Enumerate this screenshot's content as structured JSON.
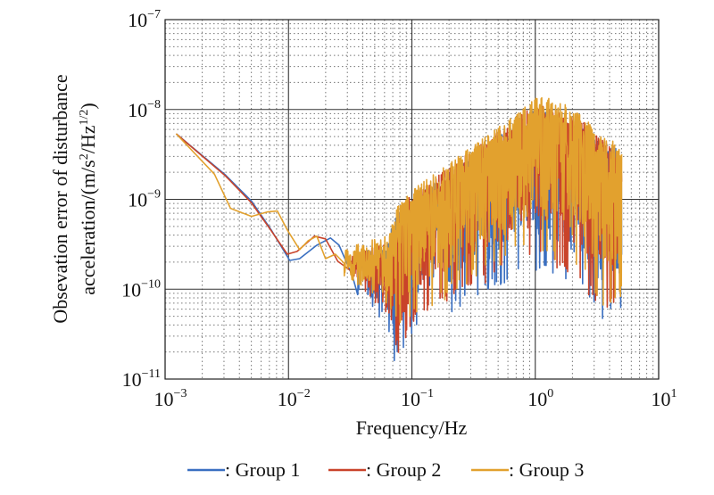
{
  "chart_data": {
    "type": "line",
    "xscale": "log",
    "yscale": "log",
    "xlim": [
      0.001,
      10
    ],
    "ylim": [
      1e-11,
      1e-07
    ],
    "xlabel": "Frequency/Hz",
    "ylabel": {
      "line1": "Obsevation error of disturbance",
      "line2_parts": [
        "acceleration/(m/s",
        "2",
        "/Hz",
        "1/2",
        ")"
      ]
    },
    "x_ticks": [
      {
        "base": "10",
        "exp": "−3",
        "log": -3
      },
      {
        "base": "10",
        "exp": "−2",
        "log": -2
      },
      {
        "base": "10",
        "exp": "−1",
        "log": -1
      },
      {
        "base": "10",
        "exp": "0",
        "log": 0
      },
      {
        "base": "10",
        "exp": "1",
        "log": 1
      }
    ],
    "y_ticks": [
      {
        "base": "10",
        "exp": "−7",
        "log": -7
      },
      {
        "base": "10",
        "exp": "−8",
        "log": -8
      },
      {
        "base": "10",
        "exp": "−9",
        "log": -9
      },
      {
        "base": "10",
        "exp": "−10",
        "log": -10
      },
      {
        "base": "10",
        "exp": "−11",
        "log": -11
      }
    ],
    "grid": {
      "major": "solid",
      "minor": "dotted"
    },
    "legend_position": "bottom",
    "note": "points given as [log10(frequency), log10(value)]; noisy_band gives [log10(frequency), log10(lower), log10(upper)] envelope of the high-frequency oscillating part",
    "series": [
      {
        "name": ": Group 1",
        "color": "#3a6fc1",
        "smooth_points": [
          [
            -2.91,
            -8.27
          ],
          [
            -2.51,
            -8.73
          ],
          [
            -2.3,
            -9.02
          ],
          [
            -2.14,
            -9.34
          ],
          [
            -1.99,
            -9.68
          ],
          [
            -1.91,
            -9.66
          ],
          [
            -1.77,
            -9.51
          ],
          [
            -1.66,
            -9.43
          ],
          [
            -1.59,
            -9.51
          ],
          [
            -1.48,
            -9.86
          ],
          [
            -1.44,
            -10.06
          ]
        ],
        "noisy_band": [
          [
            -1.44,
            -10.1,
            -9.6
          ],
          [
            -1.2,
            -10.4,
            -9.5
          ],
          [
            -1.15,
            -10.9,
            -9.2
          ],
          [
            -1.0,
            -10.5,
            -9.0
          ],
          [
            -0.7,
            -10.3,
            -8.7
          ],
          [
            -0.5,
            -10.1,
            -8.5
          ],
          [
            -0.3,
            -10.0,
            -8.3
          ],
          [
            -0.1,
            -9.8,
            -8.1
          ],
          [
            0.0,
            -9.8,
            -8.0
          ],
          [
            0.2,
            -9.9,
            -8.05
          ],
          [
            0.4,
            -10.1,
            -8.2
          ],
          [
            0.55,
            -10.4,
            -8.4
          ],
          [
            0.7,
            -10.2,
            -8.45
          ]
        ]
      },
      {
        "name": ": Group 2",
        "color": "#c9432a",
        "smooth_points": [
          [
            -2.91,
            -8.27
          ],
          [
            -2.51,
            -8.74
          ],
          [
            -2.3,
            -9.04
          ],
          [
            -2.15,
            -9.33
          ],
          [
            -2.01,
            -9.61
          ],
          [
            -1.93,
            -9.58
          ],
          [
            -1.79,
            -9.41
          ],
          [
            -1.7,
            -9.44
          ],
          [
            -1.6,
            -9.69
          ],
          [
            -1.5,
            -9.79
          ]
        ],
        "noisy_band": [
          [
            -1.5,
            -9.9,
            -9.6
          ],
          [
            -1.2,
            -10.3,
            -9.5
          ],
          [
            -1.1,
            -10.8,
            -9.1
          ],
          [
            -1.0,
            -10.4,
            -8.95
          ],
          [
            -0.7,
            -10.2,
            -8.65
          ],
          [
            -0.5,
            -10.0,
            -8.45
          ],
          [
            -0.3,
            -9.9,
            -8.25
          ],
          [
            -0.1,
            -9.7,
            -8.05
          ],
          [
            0.0,
            -9.7,
            -7.95
          ],
          [
            0.2,
            -9.8,
            -8.0
          ],
          [
            0.4,
            -10.0,
            -8.15
          ],
          [
            0.55,
            -10.3,
            -8.35
          ],
          [
            0.7,
            -10.1,
            -8.45
          ]
        ]
      },
      {
        "name": ": Group 3",
        "color": "#e2a12e",
        "smooth_points": [
          [
            -2.91,
            -8.27
          ],
          [
            -2.6,
            -8.72
          ],
          [
            -2.47,
            -9.1
          ],
          [
            -2.3,
            -9.19
          ],
          [
            -2.17,
            -9.14
          ],
          [
            -2.09,
            -9.13
          ],
          [
            -2.01,
            -9.34
          ],
          [
            -1.91,
            -9.56
          ],
          [
            -1.84,
            -9.46
          ],
          [
            -1.77,
            -9.41
          ],
          [
            -1.7,
            -9.66
          ],
          [
            -1.62,
            -9.61
          ],
          [
            -1.55,
            -9.71
          ]
        ],
        "noisy_band": [
          [
            -1.55,
            -9.9,
            -9.55
          ],
          [
            -1.2,
            -10.2,
            -9.4
          ],
          [
            -1.1,
            -10.5,
            -9.0
          ],
          [
            -1.0,
            -10.3,
            -8.9
          ],
          [
            -0.7,
            -10.1,
            -8.6
          ],
          [
            -0.5,
            -9.9,
            -8.4
          ],
          [
            -0.3,
            -9.8,
            -8.2
          ],
          [
            -0.1,
            -9.6,
            -8.0
          ],
          [
            0.0,
            -9.6,
            -7.85
          ],
          [
            0.2,
            -9.7,
            -7.9
          ],
          [
            0.4,
            -9.9,
            -8.1
          ],
          [
            0.55,
            -10.2,
            -8.3
          ],
          [
            0.7,
            -10.1,
            -8.4
          ]
        ]
      }
    ]
  }
}
